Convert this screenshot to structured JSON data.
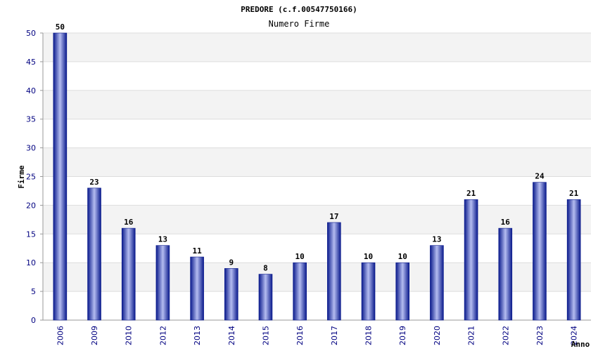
{
  "chart_data": {
    "type": "bar",
    "title": "PREDORE (c.f.00547750166)",
    "subtitle": "Numero Firme",
    "xlabel": "Anno",
    "ylabel": "Firme",
    "categories": [
      "2006",
      "2009",
      "2010",
      "2012",
      "2013",
      "2014",
      "2015",
      "2016",
      "2017",
      "2018",
      "2019",
      "2020",
      "2021",
      "2022",
      "2023",
      "2024"
    ],
    "values": [
      50,
      23,
      16,
      13,
      11,
      9,
      8,
      10,
      17,
      10,
      10,
      13,
      21,
      16,
      24,
      21
    ],
    "ylim": [
      0,
      50
    ],
    "yticks": [
      0,
      5,
      10,
      15,
      20,
      25,
      30,
      35,
      40,
      45,
      50
    ],
    "grid": true,
    "legend": "none",
    "colors": {
      "bar_dark": "#0a1a8c",
      "bar_light": "#b4bcf0",
      "band_alt": "#f3f3f3",
      "grid": "#dddddd",
      "tick_text": "#000080"
    }
  }
}
